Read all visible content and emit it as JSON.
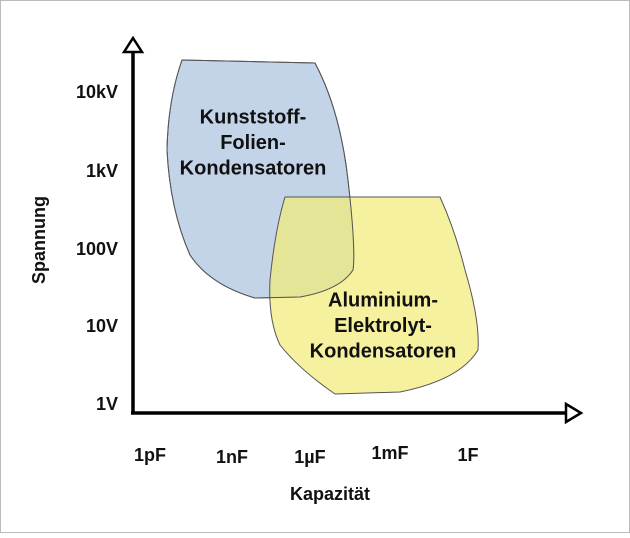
{
  "axes": {
    "y_label": "Spannung",
    "x_label": "Kapazität",
    "y_ticks": [
      "10kV",
      "1kV",
      "100V",
      "10V",
      "1V"
    ],
    "x_ticks": [
      "1pF",
      "1nF",
      "1µF",
      "1mF",
      "1F"
    ]
  },
  "regions": [
    {
      "label_lines": [
        "Kunststoff-",
        "Folien-",
        "Kondensatoren"
      ]
    },
    {
      "label_lines": [
        "Aluminium-",
        "Elektrolyt-",
        "Kondensatoren"
      ]
    }
  ]
}
